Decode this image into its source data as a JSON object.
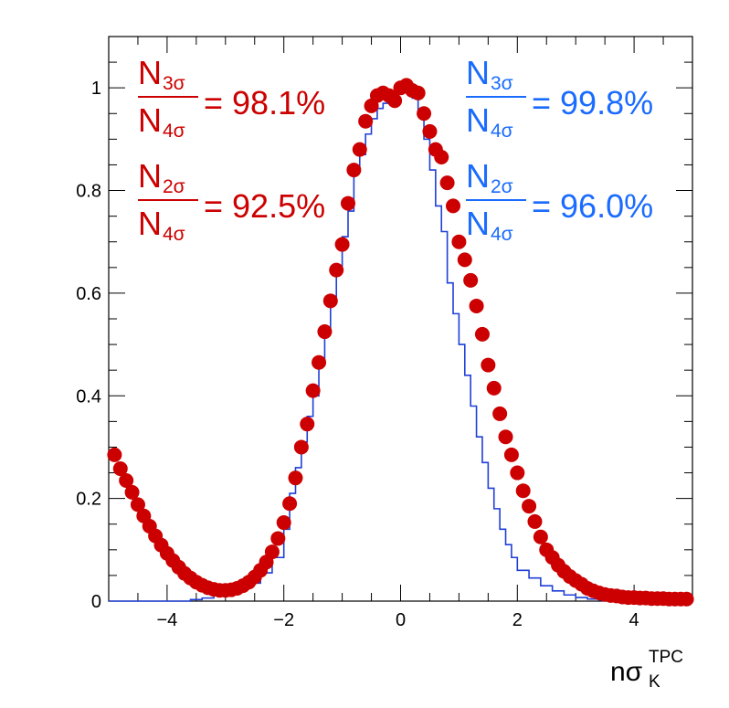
{
  "chart_data": {
    "type": "scatter",
    "xlabel": {
      "base": "nσ",
      "sup": "TPC",
      "sub": "K"
    },
    "ylabel": "",
    "xlim": [
      -5,
      5
    ],
    "ylim": [
      0,
      1.1
    ],
    "x_ticks": [
      -4,
      -2,
      0,
      2,
      4
    ],
    "y_ticks": [
      0,
      0.2,
      0.4,
      0.6,
      0.8,
      1
    ],
    "x_tick_labels": [
      "−4",
      "−2",
      "0",
      "2",
      "4"
    ],
    "y_tick_labels": [
      "0",
      "0.2",
      "0.4",
      "0.6",
      "0.8",
      "1"
    ],
    "colors": {
      "markers": "#cc0000",
      "histogram": "#1f3fd6",
      "text_red": "#cc0000",
      "text_blue": "#1a6bff"
    },
    "series": [
      {
        "kind": "markers",
        "color": "#cc0000",
        "x": [
          -4.9,
          -4.8,
          -4.7,
          -4.6,
          -4.5,
          -4.4,
          -4.3,
          -4.2,
          -4.1,
          -4.0,
          -3.9,
          -3.8,
          -3.7,
          -3.6,
          -3.5,
          -3.4,
          -3.3,
          -3.2,
          -3.1,
          -3.0,
          -2.9,
          -2.8,
          -2.7,
          -2.6,
          -2.5,
          -2.4,
          -2.3,
          -2.2,
          -2.1,
          -2.0,
          -1.9,
          -1.8,
          -1.7,
          -1.6,
          -1.5,
          -1.4,
          -1.3,
          -1.2,
          -1.1,
          -1.0,
          -0.9,
          -0.8,
          -0.7,
          -0.6,
          -0.5,
          -0.4,
          -0.3,
          -0.2,
          -0.1,
          0.0,
          0.1,
          0.2,
          0.3,
          0.4,
          0.5,
          0.6,
          0.7,
          0.8,
          0.9,
          1.0,
          1.1,
          1.2,
          1.3,
          1.4,
          1.5,
          1.6,
          1.7,
          1.8,
          1.9,
          2.0,
          2.1,
          2.2,
          2.3,
          2.4,
          2.5,
          2.6,
          2.7,
          2.8,
          2.9,
          3.0,
          3.1,
          3.2,
          3.3,
          3.4,
          3.5,
          3.6,
          3.7,
          3.8,
          3.9,
          4.0,
          4.1,
          4.2,
          4.3,
          4.4,
          4.5,
          4.6,
          4.7,
          4.8,
          4.9
        ],
        "y": [
          0.285,
          0.258,
          0.235,
          0.212,
          0.188,
          0.166,
          0.146,
          0.127,
          0.109,
          0.093,
          0.079,
          0.066,
          0.054,
          0.045,
          0.037,
          0.031,
          0.026,
          0.023,
          0.021,
          0.021,
          0.022,
          0.025,
          0.03,
          0.037,
          0.047,
          0.06,
          0.076,
          0.096,
          0.122,
          0.153,
          0.19,
          0.24,
          0.3,
          0.345,
          0.41,
          0.465,
          0.525,
          0.585,
          0.645,
          0.695,
          0.775,
          0.84,
          0.88,
          0.935,
          0.965,
          0.985,
          0.99,
          0.985,
          0.975,
          1.0,
          1.005,
          0.995,
          0.99,
          0.95,
          0.915,
          0.88,
          0.865,
          0.815,
          0.77,
          0.7,
          0.665,
          0.625,
          0.575,
          0.52,
          0.46,
          0.415,
          0.365,
          0.32,
          0.285,
          0.25,
          0.215,
          0.185,
          0.155,
          0.125,
          0.1,
          0.085,
          0.07,
          0.058,
          0.048,
          0.04,
          0.033,
          0.025,
          0.02,
          0.016,
          0.013,
          0.011,
          0.01,
          0.008,
          0.007,
          0.007,
          0.006,
          0.006,
          0.005,
          0.005,
          0.005,
          0.004,
          0.004,
          0.004,
          0.004
        ]
      },
      {
        "kind": "step",
        "color": "#1f3fd6",
        "bin_edges": [
          -3.6,
          -3.4,
          -3.2,
          -3.0,
          -2.8,
          -2.6,
          -2.4,
          -2.2,
          -2.0,
          -1.9,
          -1.8,
          -1.7,
          -1.6,
          -1.5,
          -1.4,
          -1.3,
          -1.2,
          -1.1,
          -1.0,
          -0.9,
          -0.8,
          -0.7,
          -0.6,
          -0.5,
          -0.4,
          -0.3,
          -0.2,
          -0.1,
          0.0,
          0.1,
          0.2,
          0.3,
          0.4,
          0.5,
          0.6,
          0.7,
          0.8,
          0.9,
          1.0,
          1.1,
          1.2,
          1.3,
          1.4,
          1.5,
          1.6,
          1.7,
          1.8,
          1.9,
          2.0,
          2.2,
          2.4,
          2.6,
          2.8,
          3.0,
          3.2,
          3.4,
          3.6
        ],
        "values": [
          0.003,
          0.006,
          0.012,
          0.018,
          0.025,
          0.035,
          0.055,
          0.085,
          0.14,
          0.21,
          0.26,
          0.31,
          0.36,
          0.4,
          0.46,
          0.53,
          0.59,
          0.65,
          0.71,
          0.76,
          0.84,
          0.87,
          0.91,
          0.94,
          0.96,
          0.97,
          0.98,
          0.99,
          0.995,
          1.0,
          0.98,
          0.95,
          0.9,
          0.84,
          0.77,
          0.72,
          0.62,
          0.56,
          0.5,
          0.44,
          0.38,
          0.32,
          0.27,
          0.22,
          0.18,
          0.14,
          0.11,
          0.085,
          0.06,
          0.045,
          0.03,
          0.02,
          0.012,
          0.007,
          0.004,
          0.002
        ]
      }
    ],
    "annotations": {
      "red": [
        {
          "num_base": "N",
          "num_sub": "3σ",
          "den_base": "N",
          "den_sub": "4σ",
          "value": "= 98.1%"
        },
        {
          "num_base": "N",
          "num_sub": "2σ",
          "den_base": "N",
          "den_sub": "4σ",
          "value": "= 92.5%"
        }
      ],
      "blue": [
        {
          "num_base": "N",
          "num_sub": "3σ",
          "den_base": "N",
          "den_sub": "4σ",
          "value": "= 99.8%"
        },
        {
          "num_base": "N",
          "num_sub": "2σ",
          "den_base": "N",
          "den_sub": "4σ",
          "value": "= 96.0%"
        }
      ]
    }
  }
}
